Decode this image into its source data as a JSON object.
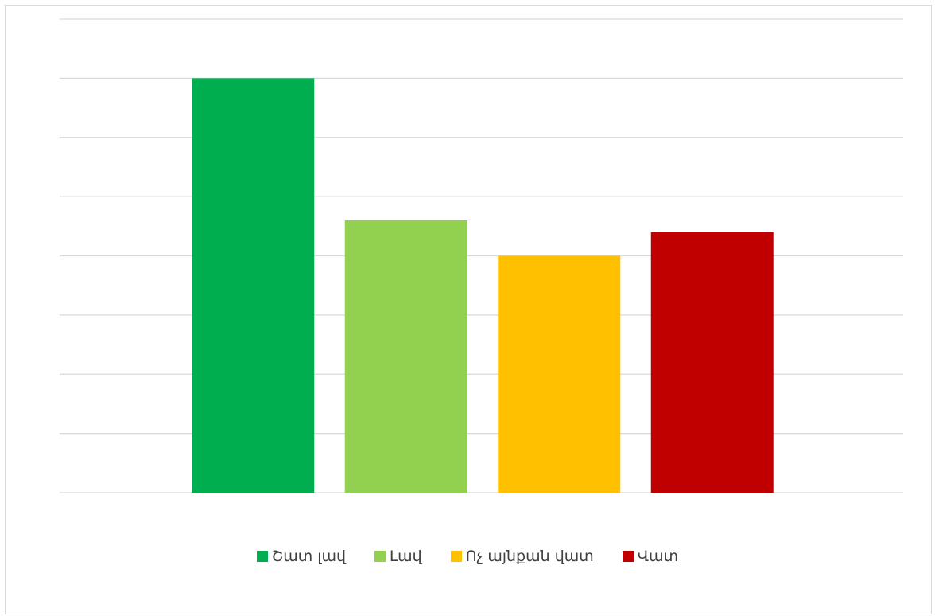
{
  "chart_data": {
    "type": "bar",
    "categories": [
      "Շատ լավ",
      "Լավ",
      "Ոչ այնքան վատ",
      "Վատ"
    ],
    "values": [
      35,
      23,
      20,
      22
    ],
    "colors": [
      "#00ad4f",
      "#92d050",
      "#ffc000",
      "#c00000"
    ],
    "ylim": [
      0,
      40
    ],
    "gridlines": [
      0,
      5,
      10,
      15,
      20,
      25,
      30,
      35,
      40
    ],
    "grid": true,
    "y_tick_labels_visible": false,
    "x_tick_labels_visible": false,
    "gridline_color": "#d9d9d9",
    "legend_position": "bottom",
    "legend": [
      {
        "label": "Շատ լավ",
        "color": "#00ad4f"
      },
      {
        "label": "Լավ",
        "color": "#92d050"
      },
      {
        "label": "Ոչ այնքան վատ",
        "color": "#ffc000"
      },
      {
        "label": "Վատ",
        "color": "#c00000"
      }
    ]
  }
}
